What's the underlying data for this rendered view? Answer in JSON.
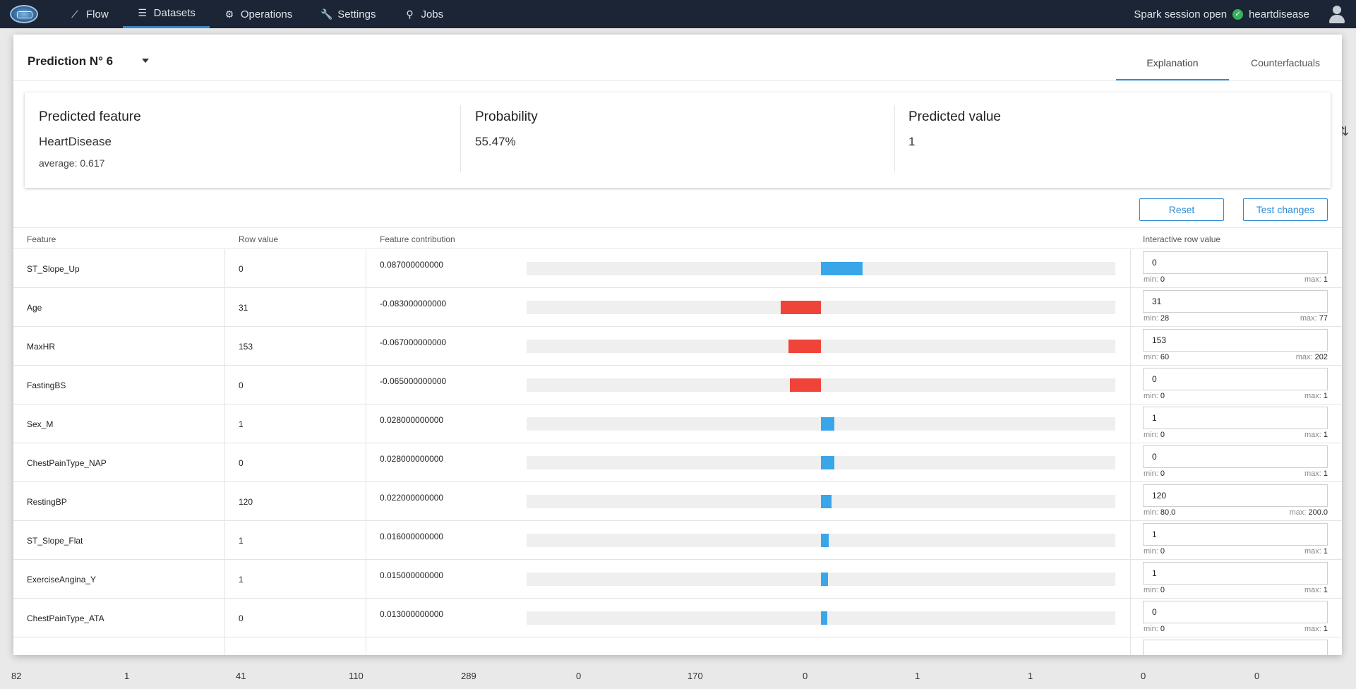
{
  "nav": {
    "items": [
      {
        "label": "Flow",
        "icon": "chart-line-icon"
      },
      {
        "label": "Datasets",
        "icon": "list-icon",
        "active": true
      },
      {
        "label": "Operations",
        "icon": "gear-icon"
      },
      {
        "label": "Settings",
        "icon": "wrench-icon"
      },
      {
        "label": "Jobs",
        "icon": "search-gear-icon"
      }
    ],
    "session_status": "Spark session open",
    "project": "heartdisease"
  },
  "background_row": [
    "82",
    "1",
    "41",
    "110",
    "289",
    "0",
    "170",
    "0",
    "1",
    "1",
    "0",
    "0"
  ],
  "modal": {
    "title": "Prediction N° 6",
    "tabs": [
      "Explanation",
      "Counterfactuals"
    ],
    "summary": {
      "predicted_feature_label": "Predicted feature",
      "predicted_feature_value": "HeartDisease",
      "average": "average: 0.617",
      "probability_label": "Probability",
      "probability_value": "55.47%",
      "predicted_value_label": "Predicted value",
      "predicted_value": "1"
    },
    "buttons": {
      "reset": "Reset",
      "test": "Test changes"
    },
    "columns": [
      "Feature",
      "Row value",
      "Feature contribution",
      "Interactive row value"
    ],
    "rows": [
      {
        "feature": "ST_Slope_Up",
        "row_value": "0",
        "contribution": "0.087000000000",
        "contrib_num": 0.087,
        "input": "0",
        "min": "0",
        "max": "1"
      },
      {
        "feature": "Age",
        "row_value": "31",
        "contribution": "-0.083000000000",
        "contrib_num": -0.083,
        "input": "31",
        "min": "28",
        "max": "77"
      },
      {
        "feature": "MaxHR",
        "row_value": "153",
        "contribution": "-0.067000000000",
        "contrib_num": -0.067,
        "input": "153",
        "min": "60",
        "max": "202"
      },
      {
        "feature": "FastingBS",
        "row_value": "0",
        "contribution": "-0.065000000000",
        "contrib_num": -0.065,
        "input": "0",
        "min": "0",
        "max": "1"
      },
      {
        "feature": "Sex_M",
        "row_value": "1",
        "contribution": "0.028000000000",
        "contrib_num": 0.028,
        "input": "1",
        "min": "0",
        "max": "1"
      },
      {
        "feature": "ChestPainType_NAP",
        "row_value": "0",
        "contribution": "0.028000000000",
        "contrib_num": 0.028,
        "input": "0",
        "min": "0",
        "max": "1"
      },
      {
        "feature": "RestingBP",
        "row_value": "120",
        "contribution": "0.022000000000",
        "contrib_num": 0.022,
        "input": "120",
        "min": "80.0",
        "max": "200.0"
      },
      {
        "feature": "ST_Slope_Flat",
        "row_value": "1",
        "contribution": "0.016000000000",
        "contrib_num": 0.016,
        "input": "1",
        "min": "0",
        "max": "1"
      },
      {
        "feature": "ExerciseAngina_Y",
        "row_value": "1",
        "contribution": "0.015000000000",
        "contrib_num": 0.015,
        "input": "1",
        "min": "0",
        "max": "1"
      },
      {
        "feature": "ChestPainType_ATA",
        "row_value": "0",
        "contribution": "0.013000000000",
        "contrib_num": 0.013,
        "input": "0",
        "min": "0",
        "max": "1"
      }
    ]
  },
  "colors": {
    "positive": "#39a6ea",
    "negative": "#f0443a",
    "accent": "#2b8ad6"
  }
}
